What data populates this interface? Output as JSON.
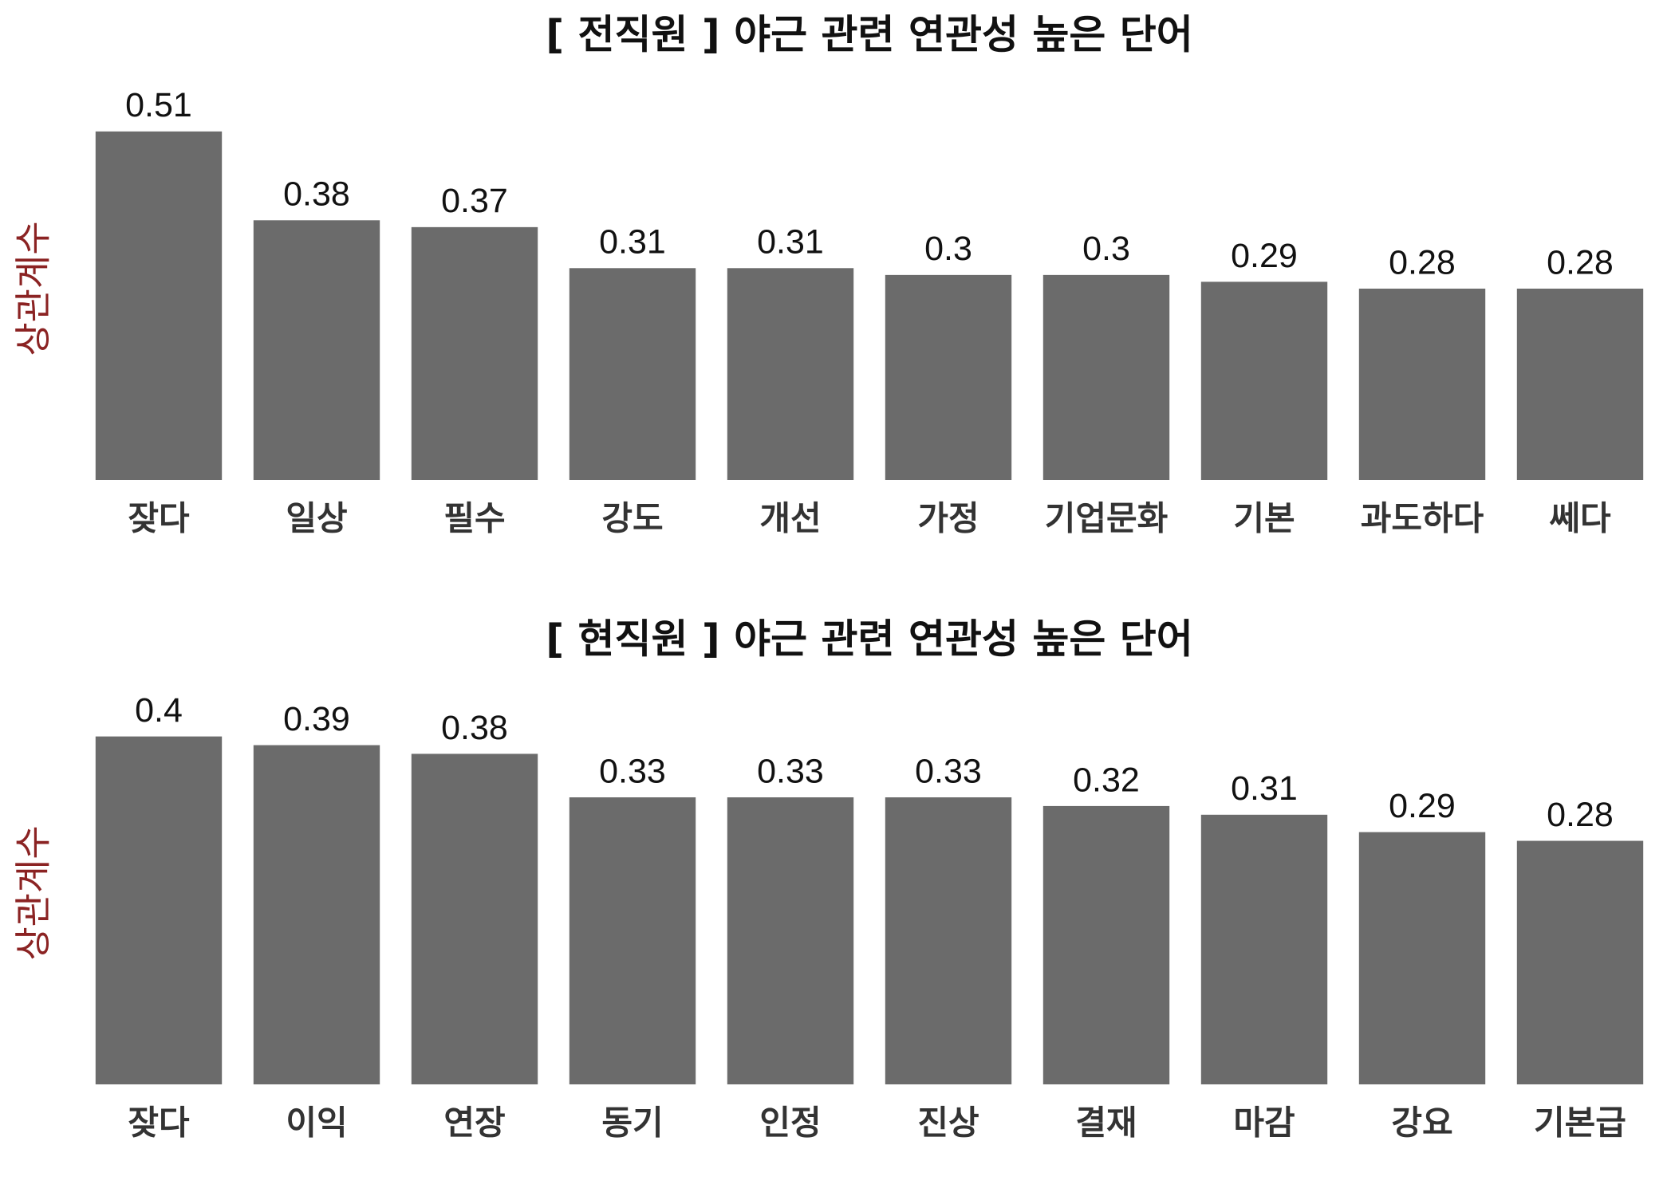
{
  "chart_data": [
    {
      "type": "bar",
      "title": "[ 전직원 ] 야근 관련 연관성 높은 단어",
      "y_label": "상관계수",
      "y_label_color": "#8b2323",
      "categories": [
        "잦다",
        "일상",
        "필수",
        "강도",
        "개선",
        "가정",
        "기업문화",
        "기본",
        "과도하다",
        "쎄다"
      ],
      "values": [
        0.51,
        0.38,
        0.37,
        0.31,
        0.31,
        0.3,
        0.3,
        0.29,
        0.28,
        0.28
      ],
      "color": "#6b6b6b",
      "ylim": [
        0,
        0.56
      ]
    },
    {
      "type": "bar",
      "title": "[ 현직원 ] 야근 관련 연관성 높은 단어",
      "y_label": "상관계수",
      "y_label_color": "#8b2323",
      "categories": [
        "잦다",
        "이익",
        "연장",
        "동기",
        "인정",
        "진상",
        "결재",
        "마감",
        "강요",
        "기본급"
      ],
      "values": [
        0.4,
        0.39,
        0.38,
        0.33,
        0.33,
        0.33,
        0.32,
        0.31,
        0.29,
        0.28
      ],
      "color": "#6b6b6b",
      "ylim": [
        0,
        0.44
      ]
    }
  ]
}
